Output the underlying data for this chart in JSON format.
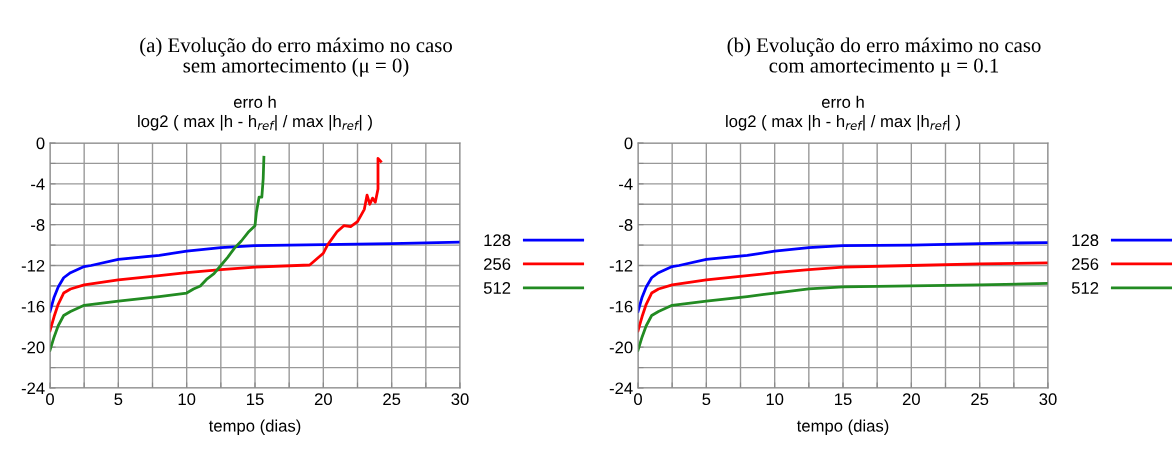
{
  "chart_data": [
    {
      "type": "line",
      "title": "(a) Evolução do erro máximo no caso\nsem amortecimento (μ = 0)",
      "subtitle": "erro h\nlog2 ( max |h - h$_{ref}$| / max |h$_{ref}$| )",
      "xlabel": "tempo (dias)",
      "xlim": [
        0,
        30
      ],
      "ylim": [
        -24,
        0
      ],
      "xticks": [
        0,
        {
          "value": 2.5,
          "label": null
        },
        5,
        {
          "value": 7.5,
          "label": null
        },
        10,
        {
          "value": 12.5,
          "label": null
        },
        15,
        {
          "value": 17.5,
          "label": null
        },
        20,
        {
          "value": 22.5,
          "label": null
        },
        25,
        {
          "value": 27.5,
          "label": null
        },
        30
      ],
      "yticks": [
        -24,
        {
          "value": -22,
          "label": null
        },
        -20,
        {
          "value": -18,
          "label": null
        },
        -16,
        {
          "value": -14,
          "label": null
        },
        -12,
        {
          "value": -10,
          "label": null
        },
        -8,
        {
          "value": -6,
          "label": null
        },
        -4,
        {
          "value": -2,
          "label": null
        },
        0
      ],
      "grid": true,
      "legend": "right",
      "marker": "none",
      "line_style": "solid",
      "series": [
        {
          "name": "128",
          "color": "#0000ff",
          "x": [
            0,
            0.3,
            0.6,
            1,
            1.5,
            2.5,
            3,
            5,
            8,
            10,
            12.5,
            15,
            20,
            25,
            30
          ],
          "values": [
            -16.5,
            -15.1,
            -14.1,
            -13.2,
            -12.7,
            -12.1,
            -12.0,
            -11.4,
            -11.0,
            -10.6,
            -10.25,
            -10.05,
            -9.95,
            -9.85,
            -9.7
          ]
        },
        {
          "name": "256",
          "color": "#ff0000",
          "x": [
            0,
            0.3,
            0.6,
            1,
            1.5,
            2.5,
            5,
            8,
            10,
            12.5,
            15,
            19,
            20,
            20.3,
            21,
            21.5,
            22,
            22.5,
            23,
            23.2,
            23.4,
            23.6,
            23.8,
            24,
            24,
            24.2
          ],
          "values": [
            -18.4,
            -17.0,
            -15.8,
            -14.7,
            -14.3,
            -13.9,
            -13.4,
            -13.0,
            -12.7,
            -12.4,
            -12.15,
            -11.95,
            -10.8,
            -10.0,
            -8.7,
            -8.1,
            -8.2,
            -7.7,
            -6.5,
            -5.1,
            -6.0,
            -5.4,
            -5.8,
            -4.5,
            -1.5,
            -1.8
          ]
        },
        {
          "name": "512",
          "color": "#228b22",
          "x": [
            0,
            0.3,
            0.6,
            1,
            1.5,
            2.5,
            5,
            8,
            10,
            10.5,
            11,
            11.5,
            12,
            12.5,
            13,
            13.5,
            14,
            14.5,
            15,
            15.1,
            15.3,
            15.5,
            15.6,
            15.65
          ],
          "values": [
            -20.3,
            -19.0,
            -17.9,
            -16.9,
            -16.5,
            -15.9,
            -15.5,
            -15.05,
            -14.7,
            -14.3,
            -14.0,
            -13.3,
            -12.8,
            -12.0,
            -11.2,
            -10.3,
            -9.6,
            -8.75,
            -8.1,
            -6.8,
            -5.3,
            -5.3,
            -3.5,
            -1.4
          ]
        }
      ]
    },
    {
      "type": "line",
      "title": "(b) Evolução do erro máximo no caso\ncom amortecimento μ = 0.1",
      "subtitle": "erro h\nlog2 ( max |h - h$_{ref}$| / max |h$_{ref}$| )",
      "xlabel": "tempo (dias)",
      "xlim": [
        0,
        30
      ],
      "ylim": [
        -24,
        0
      ],
      "xticks": [
        0,
        {
          "value": 2.5,
          "label": null
        },
        5,
        {
          "value": 7.5,
          "label": null
        },
        10,
        {
          "value": 12.5,
          "label": null
        },
        15,
        {
          "value": 17.5,
          "label": null
        },
        20,
        {
          "value": 22.5,
          "label": null
        },
        25,
        {
          "value": 27.5,
          "label": null
        },
        30
      ],
      "yticks": [
        -24,
        {
          "value": -22,
          "label": null
        },
        -20,
        {
          "value": -18,
          "label": null
        },
        -16,
        {
          "value": -14,
          "label": null
        },
        -12,
        {
          "value": -10,
          "label": null
        },
        -8,
        {
          "value": -6,
          "label": null
        },
        -4,
        {
          "value": -2,
          "label": null
        },
        0
      ],
      "grid": true,
      "legend": "right",
      "marker": "none",
      "line_style": "solid",
      "series": [
        {
          "name": "128",
          "color": "#0000ff",
          "x": [
            0,
            0.3,
            0.6,
            1,
            1.5,
            2.5,
            3,
            5,
            8,
            10,
            12.5,
            15,
            20,
            25,
            30
          ],
          "values": [
            -16.5,
            -15.1,
            -14.1,
            -13.2,
            -12.7,
            -12.1,
            -12.0,
            -11.4,
            -11.0,
            -10.6,
            -10.25,
            -10.05,
            -10.0,
            -9.85,
            -9.75
          ]
        },
        {
          "name": "256",
          "color": "#ff0000",
          "x": [
            0,
            0.3,
            0.6,
            1,
            1.5,
            2.5,
            5,
            8,
            10,
            12.5,
            15,
            20,
            25,
            30
          ],
          "values": [
            -18.4,
            -17.0,
            -15.8,
            -14.7,
            -14.3,
            -13.9,
            -13.4,
            -13.0,
            -12.7,
            -12.4,
            -12.15,
            -12.0,
            -11.85,
            -11.75
          ]
        },
        {
          "name": "512",
          "color": "#228b22",
          "x": [
            0,
            0.3,
            0.6,
            1,
            1.5,
            2.5,
            5,
            8,
            10,
            12.5,
            15,
            20,
            25,
            30
          ],
          "values": [
            -20.3,
            -19.0,
            -17.9,
            -16.9,
            -16.5,
            -15.9,
            -15.5,
            -15.05,
            -14.7,
            -14.3,
            -14.1,
            -14.0,
            -13.9,
            -13.75
          ]
        }
      ]
    }
  ]
}
